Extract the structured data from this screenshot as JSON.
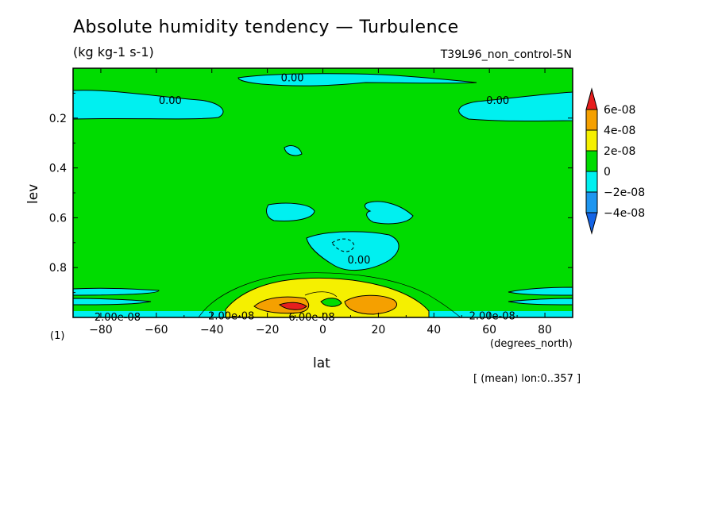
{
  "chart_data": {
    "type": "contour",
    "title": "Absolute humidity tendency — Turbulence",
    "units": "(kg kg-1 s-1)",
    "run_name": "T39L96_non_control-5N",
    "xlabel": "lat",
    "x_units": "(degrees_north)",
    "ylabel": "lev",
    "footnote": "(1)",
    "mean_note": "[ (mean) lon:0..357 ]",
    "xlim": [
      -90,
      90
    ],
    "ylim": [
      1.0,
      0.0
    ],
    "x_ticks": [
      -80,
      -60,
      -40,
      -20,
      0,
      20,
      40,
      60,
      80
    ],
    "x_tick_labels": [
      "−80",
      "−60",
      "−40",
      "−20",
      "0",
      "20",
      "40",
      "60",
      "80"
    ],
    "y_ticks": [
      0.2,
      0.4,
      0.6,
      0.8
    ],
    "y_tick_labels": [
      "0.2",
      "0.4",
      "0.6",
      "0.8"
    ],
    "colorbar": {
      "levels": [
        "6e-08",
        "4e-08",
        "2e-08",
        "0",
        "−2e-08",
        "−4e-08"
      ],
      "colors": [
        "#e61e1e",
        "#f5a000",
        "#f5f000",
        "#00dc00",
        "#00f0f0",
        "#1e96f0",
        "#1464e6"
      ]
    },
    "contour_labels": [
      {
        "text": "0.00",
        "lat": -11,
        "lev": 0.04
      },
      {
        "text": "0.00",
        "lat": -55,
        "lev": 0.13
      },
      {
        "text": "0.00",
        "lat": 63,
        "lev": 0.13
      },
      {
        "text": "0.00",
        "lat": 13,
        "lev": 0.77
      },
      {
        "text": "2.00e-08",
        "lat": -74,
        "lev": 1.0
      },
      {
        "text": "2.00e-08",
        "lat": -33,
        "lev": 0.995
      },
      {
        "text": "6.00e-08",
        "lat": -4,
        "lev": 1.0
      },
      {
        "text": "2.00e-08",
        "lat": 61,
        "lev": 0.995
      }
    ],
    "regions": [
      {
        "sign": "negative",
        "level": "0 to −2e-08",
        "lat_range": [
          -90,
          -40
        ],
        "lev_range": [
          0.08,
          0.2
        ]
      },
      {
        "sign": "negative",
        "level": "0 to −2e-08",
        "lat_range": [
          45,
          90
        ],
        "lev_range": [
          0.08,
          0.2
        ]
      },
      {
        "sign": "negative",
        "level": "0 to −2e-08",
        "lat_range": [
          -30,
          90
        ],
        "lev_range": [
          0.02,
          0.07
        ]
      },
      {
        "sign": "negative",
        "level": "0 to −2e-08",
        "lat_range": [
          -20,
          32
        ],
        "lev_range": [
          0.52,
          0.62
        ]
      },
      {
        "sign": "negative",
        "level": "0 to −2e-08",
        "lat_range": [
          -4,
          27
        ],
        "lev_range": [
          0.65,
          0.8
        ]
      },
      {
        "sign": "positive",
        "level": "2e-08 to 6e-08",
        "lat_range": [
          -35,
          40
        ],
        "lev_range": [
          0.84,
          1.0
        ]
      },
      {
        "sign": "positive",
        "level": "> 6e-08",
        "lat_range": [
          -14,
          -6
        ],
        "lev_range": [
          0.97,
          0.99
        ]
      },
      {
        "sign": "positive",
        "level": "4e-08 to 6e-08",
        "lat_range": [
          10,
          25
        ],
        "lev_range": [
          0.93,
          0.99
        ]
      }
    ]
  }
}
